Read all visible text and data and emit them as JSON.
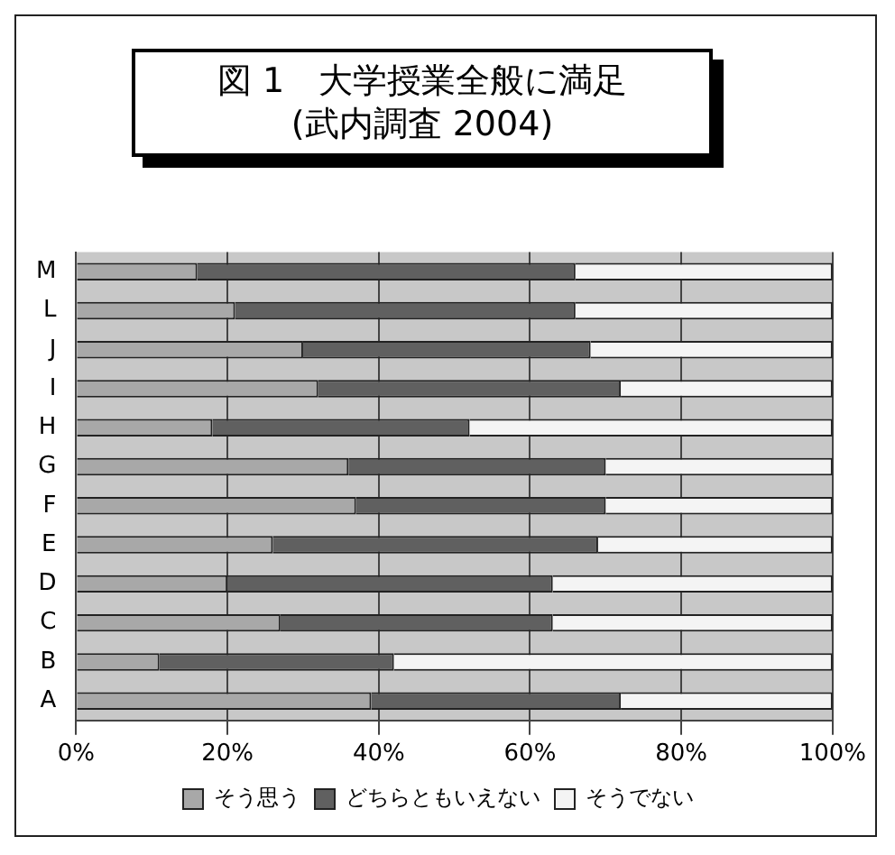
{
  "chart_data": {
    "type": "bar",
    "orientation": "horizontal",
    "stacked": true,
    "title": "図 1　大学授業全般に満足",
    "subtitle": "(武内調査 2004)",
    "categories": [
      "M",
      "L",
      "J",
      "I",
      "H",
      "G",
      "F",
      "E",
      "D",
      "C",
      "B",
      "A"
    ],
    "series": [
      {
        "name": "そう思う",
        "color": "#a8a8a8",
        "values": [
          16,
          21,
          30,
          32,
          18,
          36,
          37,
          26,
          20,
          27,
          11,
          39
        ]
      },
      {
        "name": "どちらともいえない",
        "color": "#606060",
        "values": [
          50,
          45,
          38,
          40,
          34,
          34,
          33,
          43,
          43,
          36,
          31,
          33
        ]
      },
      {
        "name": "そうでない",
        "color": "#f4f4f4",
        "values": [
          34,
          34,
          32,
          28,
          48,
          30,
          30,
          31,
          37,
          37,
          58,
          28
        ]
      }
    ],
    "xlim": [
      0,
      100
    ],
    "xticks": [
      {
        "value": 0,
        "label": "0%"
      },
      {
        "value": 20,
        "label": "20%"
      },
      {
        "value": 40,
        "label": "40%"
      },
      {
        "value": 60,
        "label": "60%"
      },
      {
        "value": 80,
        "label": "80%"
      },
      {
        "value": 100,
        "label": "100%"
      }
    ],
    "grid": "x",
    "legend": "bottom"
  }
}
